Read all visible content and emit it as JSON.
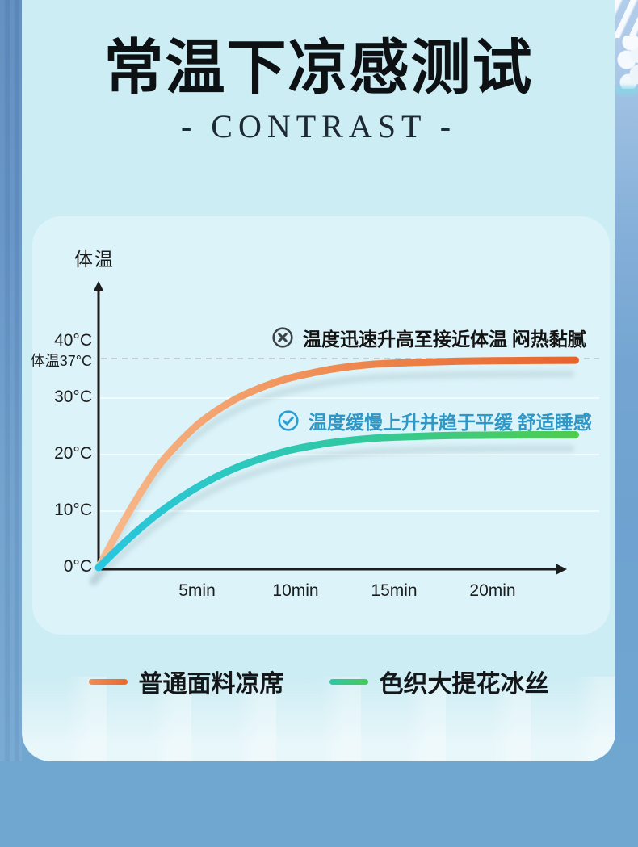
{
  "header": {
    "title": "常温下凉感测试",
    "subtitle": "- CONTRAST -"
  },
  "chart_data": {
    "type": "line",
    "ylabel": "体温",
    "x_unit": "min",
    "xlim_minutes": [
      0,
      25
    ],
    "ylim": [
      0,
      45
    ],
    "grid": "horizontal-only",
    "grid_values": [
      10,
      20,
      30
    ],
    "reference_line": {
      "v": 37,
      "label": "体温37°C"
    },
    "y_ticks": [
      {
        "v": 40,
        "label": "40°C"
      },
      {
        "v": 30,
        "label": "30°C"
      },
      {
        "v": 20,
        "label": "20°C"
      },
      {
        "v": 10,
        "label": "10°C"
      },
      {
        "v": 0,
        "label": "0°C"
      }
    ],
    "x_ticks": [
      {
        "t": 5,
        "label": "5min"
      },
      {
        "t": 10,
        "label": "10min"
      },
      {
        "t": 15,
        "label": "15min"
      },
      {
        "t": 20,
        "label": "20min"
      }
    ],
    "series": [
      {
        "name": "普通面料凉席",
        "gradient": [
          "#f7bb8e",
          "#ef8a50",
          "#e6642e"
        ],
        "annotation": {
          "icon": "x-circle-icon",
          "text": "温度迅速升高至接近体温 闷热黏腻",
          "color": "#131313"
        },
        "points": [
          [
            0,
            0
          ],
          [
            1,
            6.5
          ],
          [
            2,
            12.5
          ],
          [
            3,
            17.8
          ],
          [
            4,
            21.8
          ],
          [
            5,
            25.2
          ],
          [
            6,
            27.8
          ],
          [
            7,
            29.9
          ],
          [
            8,
            31.5
          ],
          [
            9,
            32.8
          ],
          [
            10,
            33.8
          ],
          [
            12,
            35.2
          ],
          [
            14,
            36.0
          ],
          [
            16,
            36.3
          ],
          [
            18,
            36.5
          ],
          [
            20,
            36.6
          ],
          [
            22,
            36.65
          ],
          [
            24.2,
            36.7
          ]
        ]
      },
      {
        "name": "色织大提花冰丝",
        "gradient": [
          "#29c6e0",
          "#2fc9a6",
          "#4fcc4b"
        ],
        "annotation": {
          "icon": "check-circle-icon",
          "text": "温度缓慢上升并趋于平缓 舒适睡感",
          "color": "#2f97c6"
        },
        "points": [
          [
            0,
            0
          ],
          [
            1,
            3.4
          ],
          [
            2,
            6.6
          ],
          [
            3,
            9.5
          ],
          [
            4,
            12.0
          ],
          [
            5,
            14.2
          ],
          [
            6,
            16.1
          ],
          [
            7,
            17.7
          ],
          [
            8,
            19.0
          ],
          [
            9,
            20.1
          ],
          [
            10,
            21.0
          ],
          [
            12,
            22.2
          ],
          [
            14,
            22.9
          ],
          [
            16,
            23.2
          ],
          [
            18,
            23.4
          ],
          [
            20,
            23.45
          ],
          [
            22,
            23.5
          ],
          [
            24.2,
            23.5
          ]
        ]
      }
    ]
  },
  "legend": {
    "items": [
      {
        "label": "普通面料凉席",
        "gradient": [
          "#f08c58",
          "#e7692f"
        ]
      },
      {
        "label": "色织大提花冰丝",
        "gradient": [
          "#2fc8a8",
          "#46ca56"
        ]
      }
    ]
  },
  "colors": {
    "outer_background": "#6fa7d1",
    "card_background": "#cdedf4",
    "panel_background": "#dcf4f9",
    "axis": "#1c1c1c",
    "dashed_reference": "#c3ced3",
    "annotation_negative": "#131313",
    "annotation_positive": "#2f97c6"
  }
}
